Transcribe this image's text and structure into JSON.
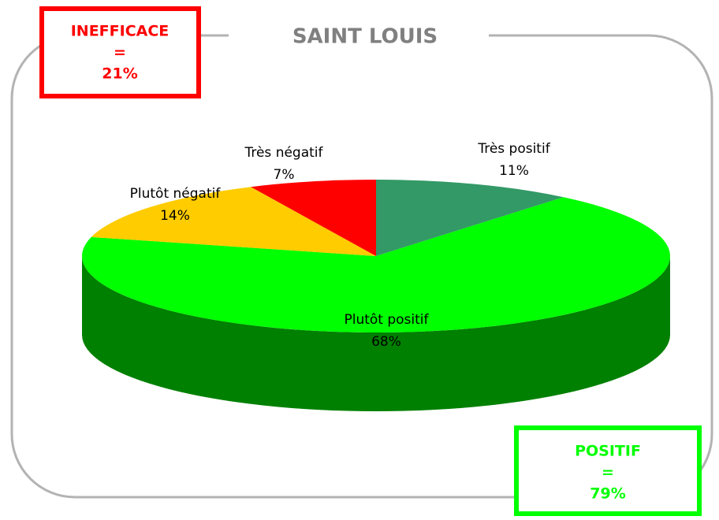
{
  "chart_data": {
    "type": "pie",
    "title": "SAINT LOUIS",
    "categories": [
      "Très positif",
      "Plutôt positif",
      "Plutôt négatif",
      "Très négatif"
    ],
    "values": [
      11,
      68,
      14,
      7
    ],
    "value_labels": [
      "11%",
      "68%",
      "14%",
      "7%"
    ],
    "colors": [
      "#339966",
      "#00ff00",
      "#ffcc00",
      "#ff0000"
    ],
    "annotations": [
      {
        "lines": [
          "INEFFICACE",
          "=",
          "21%"
        ],
        "color": "#ff0000"
      },
      {
        "lines": [
          "POSITIF",
          "=",
          "79%"
        ],
        "color": "#00ff00"
      }
    ]
  }
}
